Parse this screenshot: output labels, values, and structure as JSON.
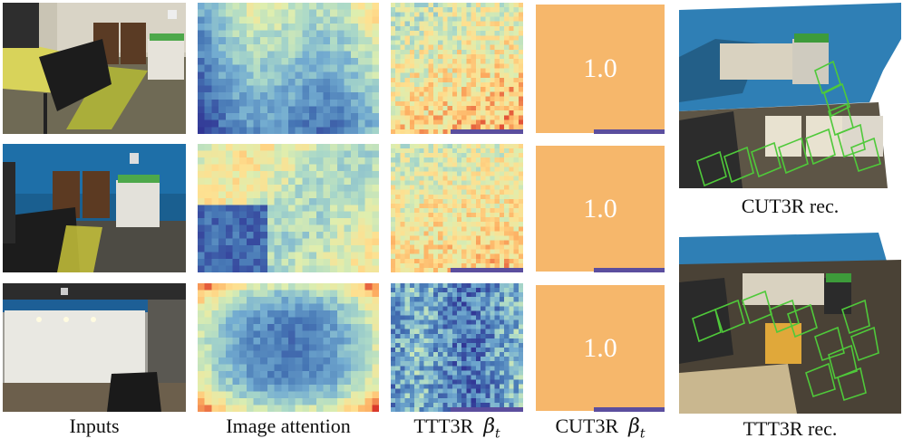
{
  "columns": {
    "inputs": "Inputs",
    "image_attention": "Image attention",
    "ttt3r": "TTT3R",
    "cut3r": "CUT3R",
    "beta_symbol": "β",
    "beta_sub": "t"
  },
  "rows": [
    {
      "name": "row-1",
      "cut3r_value": "1.0",
      "ttt3r_bar_fraction": 0.55,
      "cut3r_bar_fraction": 0.55
    },
    {
      "name": "row-2",
      "cut3r_value": "1.0",
      "ttt3r_bar_fraction": 0.55,
      "cut3r_bar_fraction": 0.55
    },
    {
      "name": "row-3",
      "cut3r_value": "1.0",
      "ttt3r_bar_fraction": 0.55,
      "cut3r_bar_fraction": 0.55
    }
  ],
  "reconstructions": {
    "cut3r": "CUT3R rec.",
    "ttt3r": "TTT3R rec."
  },
  "colors": {
    "cut3r_panel": "#f6b76b",
    "bar": "#5b4e9e",
    "camera": "#4fc93a"
  }
}
